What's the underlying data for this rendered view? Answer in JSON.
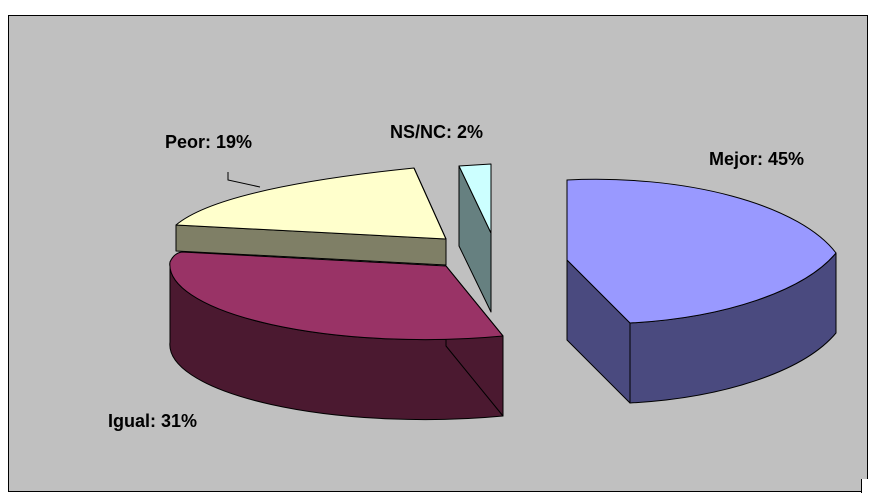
{
  "chart_data": {
    "type": "pie",
    "title": "",
    "slices": [
      {
        "label": "Mejor",
        "value": 45,
        "display": "Mejor: 45%",
        "top_color": "#9999ff",
        "side_color": "#4a4a7f"
      },
      {
        "label": "Igual",
        "value": 31,
        "display": "Igual: 31%",
        "top_color": "#993366",
        "side_color": "#4b1930"
      },
      {
        "label": "Peor",
        "value": 19,
        "display": "Peor: 19%",
        "top_color": "#ffffcc",
        "side_color": "#7f7f66"
      },
      {
        "label": "NS/NC",
        "value": 2,
        "display": "NS/NC: 2%",
        "top_color": "#ccffff",
        "side_color": "#668080"
      }
    ],
    "legend": "none",
    "style": "3d-exploded"
  }
}
